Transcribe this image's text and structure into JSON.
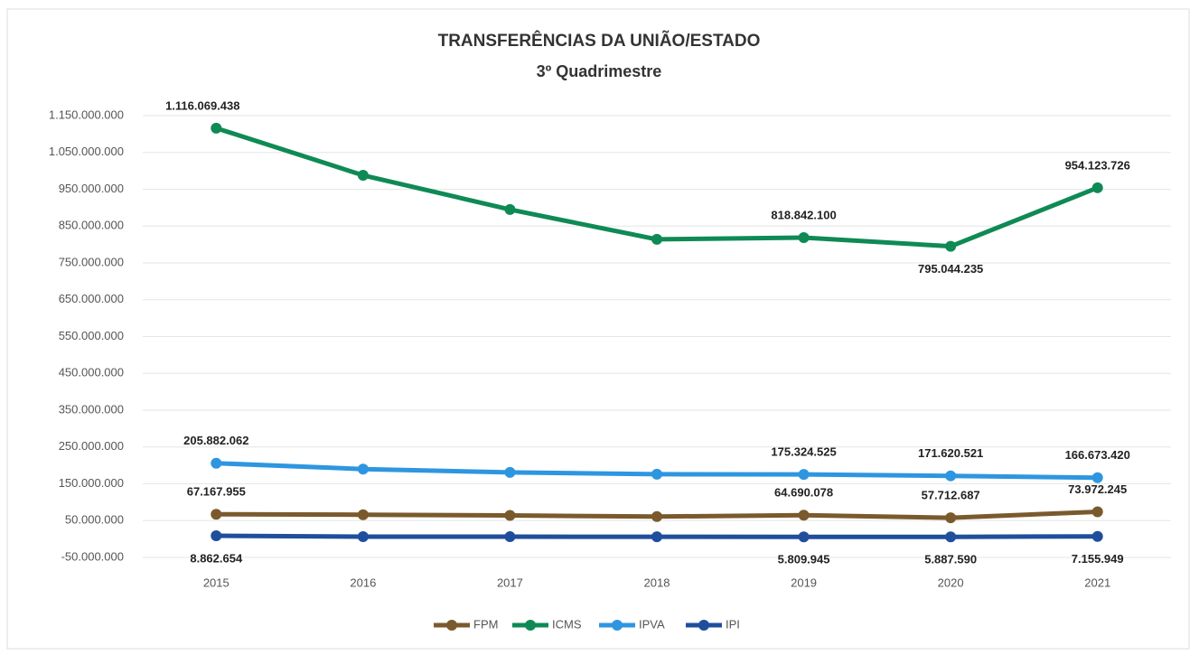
{
  "chart_data": {
    "type": "line",
    "title": "TRANSFERÊNCIAS DA UNIÃO/ESTADO",
    "subtitle": "3º Quadrimestre",
    "categories": [
      "2015",
      "2016",
      "2017",
      "2018",
      "2019",
      "2020",
      "2021"
    ],
    "series": [
      {
        "name": "FPM",
        "color": "#7a5a2c",
        "values": [
          67167955,
          66000000,
          64000000,
          61000000,
          64690078,
          57712687,
          73972245
        ],
        "value_labels": [
          "67.167.955",
          null,
          null,
          null,
          "64.690.078",
          "57.712.687",
          "73.972.245"
        ]
      },
      {
        "name": "ICMS",
        "color": "#0f8a55",
        "values": [
          1116069438,
          988000000,
          895000000,
          814000000,
          818842100,
          795044235,
          954123726
        ],
        "value_labels": [
          "1.116.069.438",
          null,
          null,
          null,
          "818.842.100",
          "795.044.235",
          "954.123.726"
        ]
      },
      {
        "name": "IPVA",
        "color": "#2e96e0",
        "values": [
          205882062,
          190000000,
          181000000,
          176000000,
          175324525,
          171620521,
          166673420
        ],
        "value_labels": [
          "205.882.062",
          null,
          null,
          null,
          "175.324.525",
          "171.620.521",
          "166.673.420"
        ]
      },
      {
        "name": "IPI",
        "color": "#1f4e9c",
        "values": [
          8862654,
          6500000,
          6300000,
          6200000,
          5809945,
          5887590,
          7155949
        ],
        "value_labels": [
          "8.862.654",
          null,
          null,
          null,
          "5.809.945",
          "5.887.590",
          "7.155.949"
        ]
      }
    ],
    "ylim": [
      -50000000,
      1150000000
    ],
    "yticks": [
      {
        "value": -50000000,
        "label": "-50.000.000"
      },
      {
        "value": 50000000,
        "label": "50.000.000"
      },
      {
        "value": 150000000,
        "label": "150.000.000"
      },
      {
        "value": 250000000,
        "label": "250.000.000"
      },
      {
        "value": 350000000,
        "label": "350.000.000"
      },
      {
        "value": 450000000,
        "label": "450.000.000"
      },
      {
        "value": 550000000,
        "label": "550.000.000"
      },
      {
        "value": 650000000,
        "label": "650.000.000"
      },
      {
        "value": 750000000,
        "label": "750.000.000"
      },
      {
        "value": 850000000,
        "label": "850.000.000"
      },
      {
        "value": 950000000,
        "label": "950.000.000"
      },
      {
        "value": 1050000000,
        "label": "1.050.000.000"
      },
      {
        "value": 1150000000,
        "label": "1.150.000.000"
      }
    ],
    "grid": true,
    "legend": "bottom"
  }
}
